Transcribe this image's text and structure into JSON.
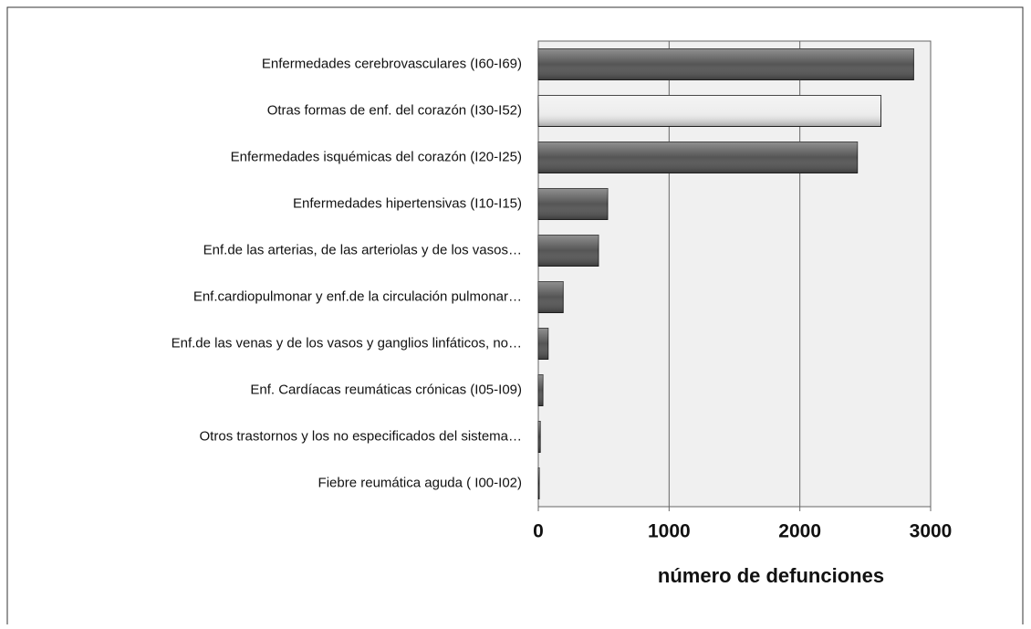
{
  "chart_data": {
    "type": "barh",
    "categories": [
      "Enfermedades cerebrovasculares (I60-I69)",
      "Otras formas de enf. del corazón (I30-I52)",
      "Enfermedades isquémicas del corazón (I20-I25)",
      "Enfermedades hipertensivas (I10-I15)",
      "Enf.de las arterias, de las arteriolas y de los vasos…",
      "Enf.cardiopulmonar y enf.de la circulación pulmonar…",
      "Enf.de las venas y de los vasos y ganglios linfáticos, no…",
      "Enf. Cardíacas reumáticas crónicas (I05-I09)",
      "Otros trastornos y los no especificados del sistema…",
      "Fiebre reumática aguda ( I00-I02)"
    ],
    "values": [
      2870,
      2620,
      2440,
      530,
      460,
      190,
      75,
      35,
      15,
      7
    ],
    "colors": [
      "#555555",
      "#eeeeee",
      "#555555",
      "#555555",
      "#555555",
      "#555555",
      "#555555",
      "#555555",
      "#555555",
      "#555555"
    ],
    "x_label": "número de defunciones",
    "xlim": [
      0,
      3000
    ],
    "xticks": [
      0,
      1000,
      2000,
      3000
    ],
    "grid": true
  }
}
